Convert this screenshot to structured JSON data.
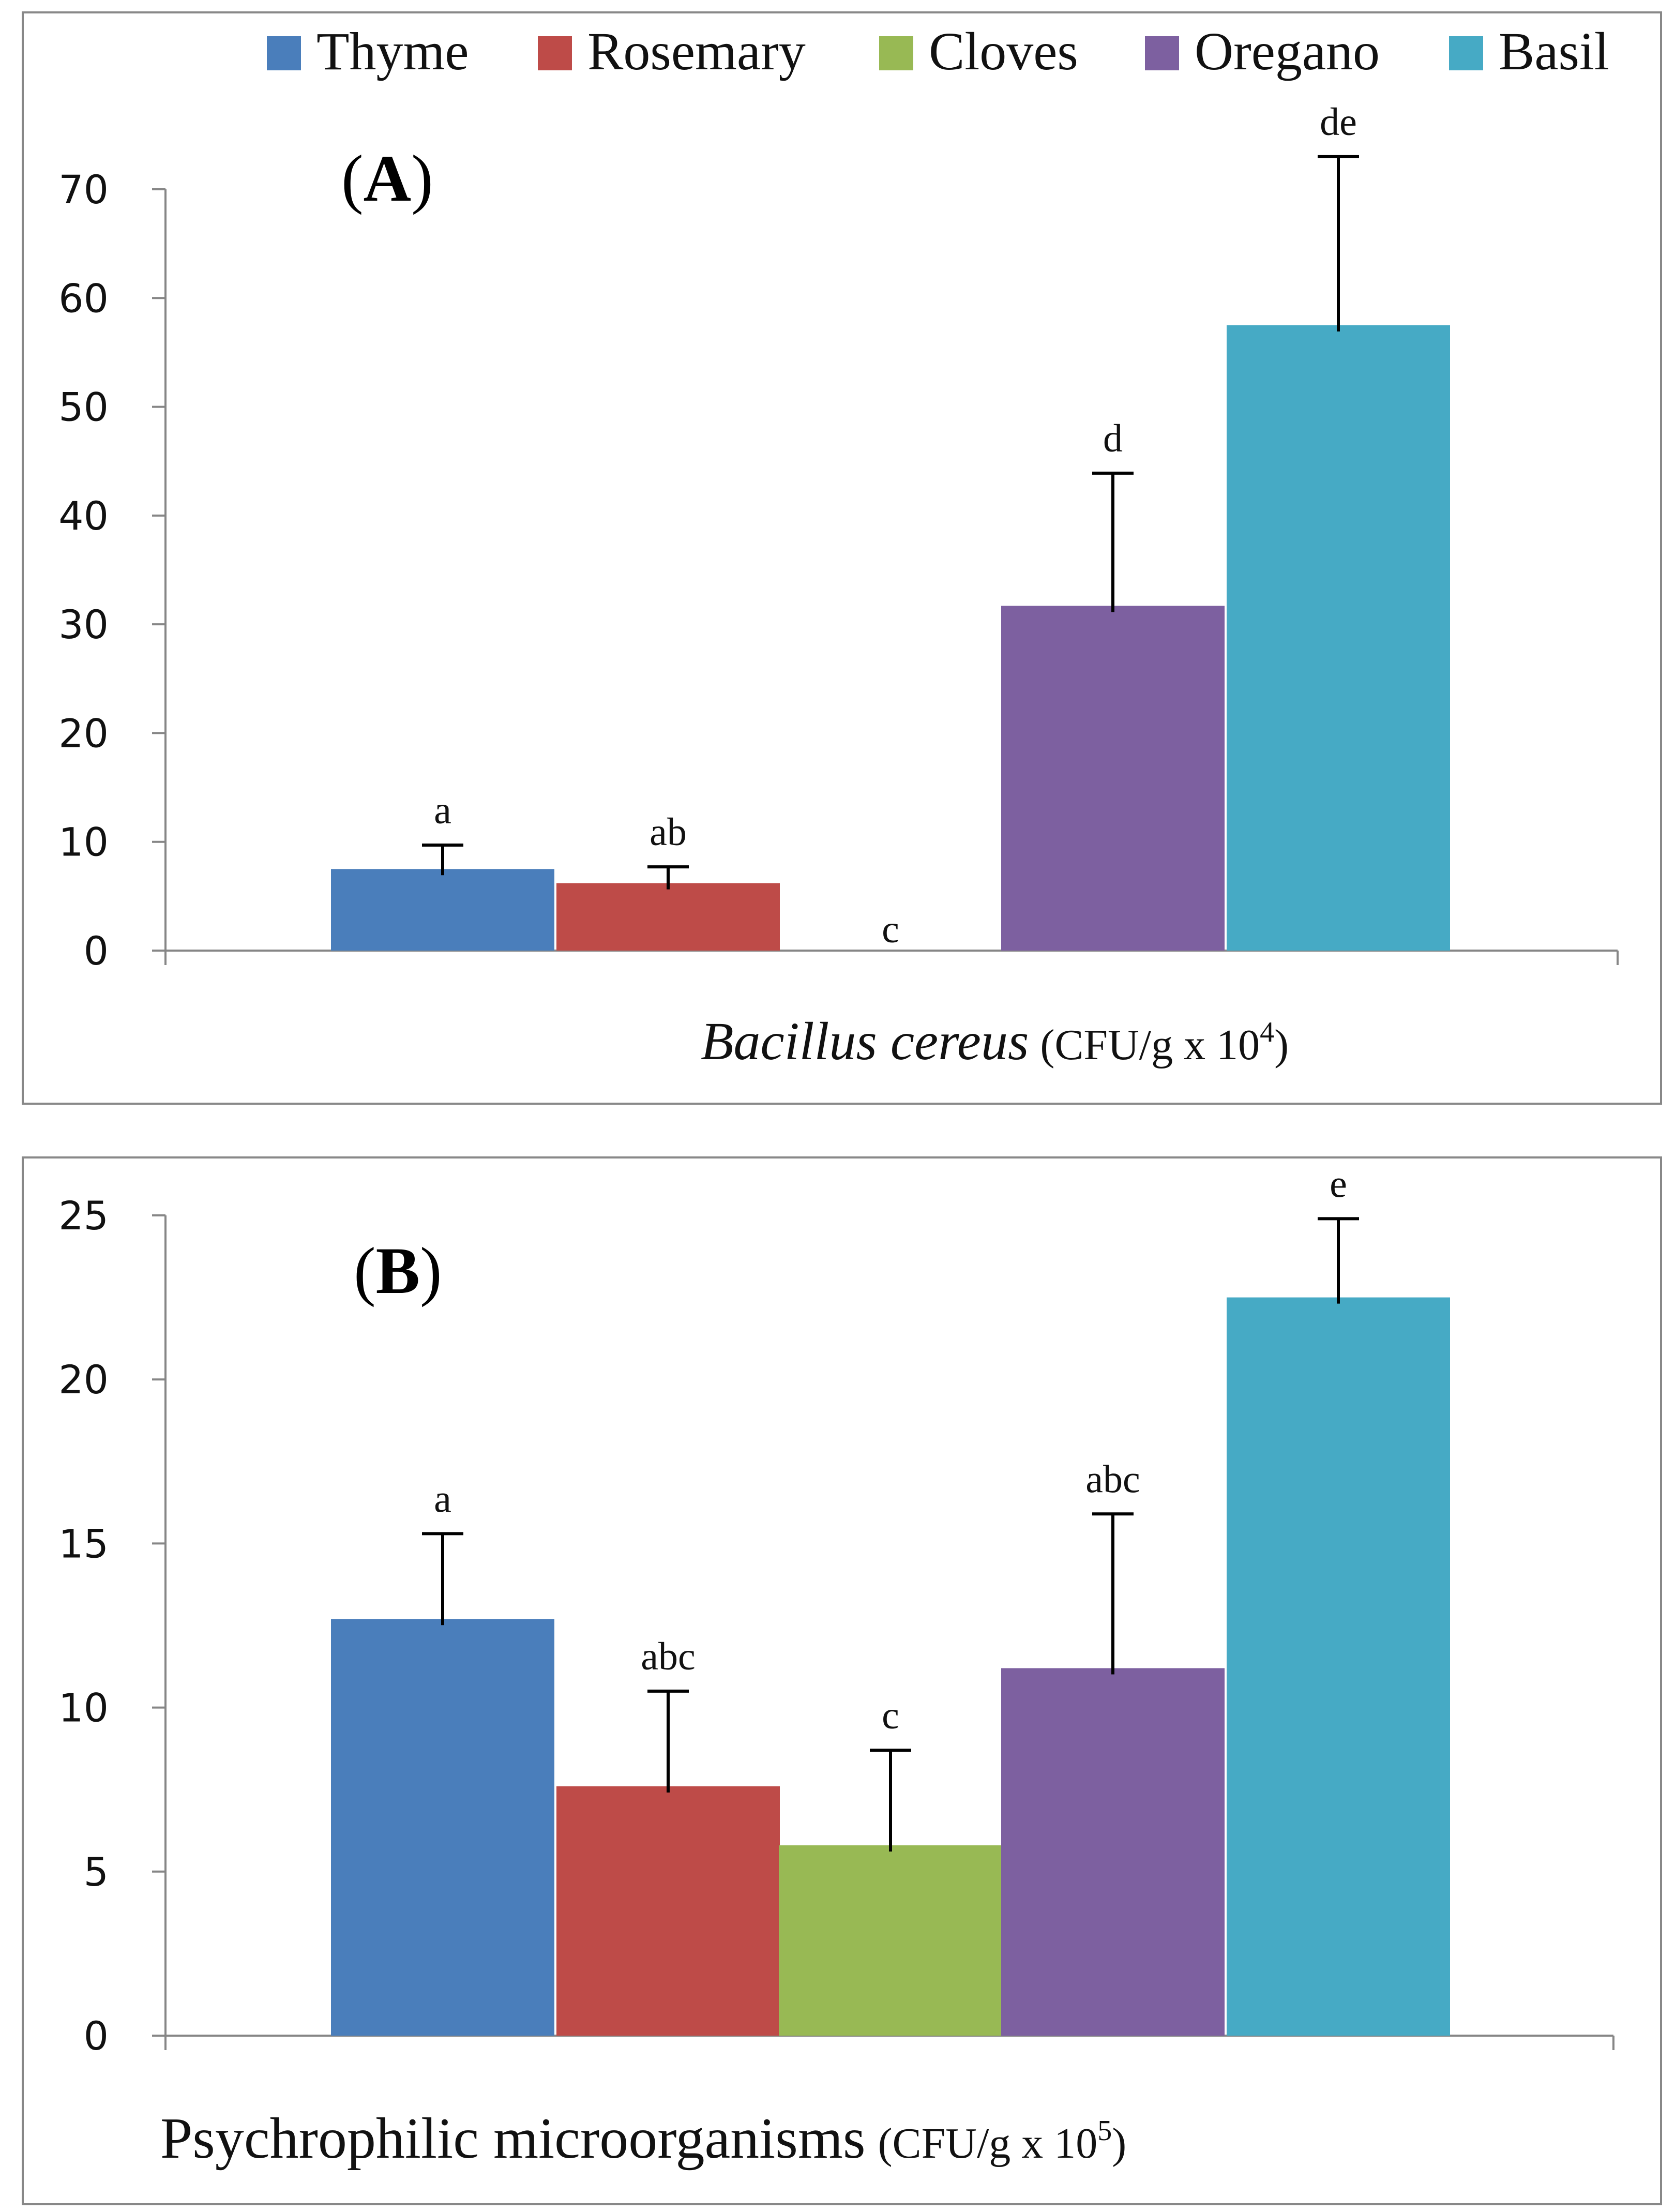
{
  "legend": [
    {
      "name": "Thyme",
      "color": "#4a7ebb"
    },
    {
      "name": "Rosemary",
      "color": "#be4b48"
    },
    {
      "name": "Cloves",
      "color": "#98b954"
    },
    {
      "name": "Oregano",
      "color": "#7d60a0"
    },
    {
      "name": "Basil",
      "color": "#46aac5"
    }
  ],
  "chart_data": [
    {
      "type": "bar",
      "panel_label": "A",
      "xlabel": "Bacillus cereus (CFU/g x 10⁴)",
      "xlabel_italic": "Bacillus cereus",
      "xlabel_unit_prefix": "(CFU/g x 10",
      "xlabel_unit_exp": "4",
      "xlabel_unit_suffix": ")",
      "ylim": [
        0,
        70
      ],
      "yticks": [
        0,
        10,
        20,
        30,
        40,
        50,
        60,
        70
      ],
      "series": [
        {
          "name": "Thyme",
          "value": 7.5,
          "error": 2.2,
          "letter": "a"
        },
        {
          "name": "Rosemary",
          "value": 6.2,
          "error": 1.5,
          "letter": "ab"
        },
        {
          "name": "Cloves",
          "value": 0,
          "error": 0,
          "letter": "c"
        },
        {
          "name": "Oregano",
          "value": 31.7,
          "error": 12.2,
          "letter": "d"
        },
        {
          "name": "Basil",
          "value": 57.5,
          "error": 15.5,
          "letter": "de"
        }
      ]
    },
    {
      "type": "bar",
      "panel_label": "B",
      "xlabel": "Psychrophilic microorganisms (CFU/g x 10⁵)",
      "xlabel_main": "Psychrophilic microorganisms",
      "xlabel_unit_prefix": "(CFU/g x 10",
      "xlabel_unit_exp": "5",
      "xlabel_unit_suffix": ")",
      "ylim": [
        0,
        25
      ],
      "yticks": [
        0,
        5,
        10,
        15,
        20,
        25
      ],
      "series": [
        {
          "name": "Thyme",
          "value": 12.7,
          "error": 2.6,
          "letter": "a"
        },
        {
          "name": "Rosemary",
          "value": 7.6,
          "error": 2.9,
          "letter": "abc"
        },
        {
          "name": "Cloves",
          "value": 5.8,
          "error": 2.9,
          "letter": "c"
        },
        {
          "name": "Oregano",
          "value": 11.2,
          "error": 4.7,
          "letter": "abc"
        },
        {
          "name": "Basil",
          "value": 22.5,
          "error": 2.4,
          "letter": "e"
        }
      ]
    }
  ]
}
